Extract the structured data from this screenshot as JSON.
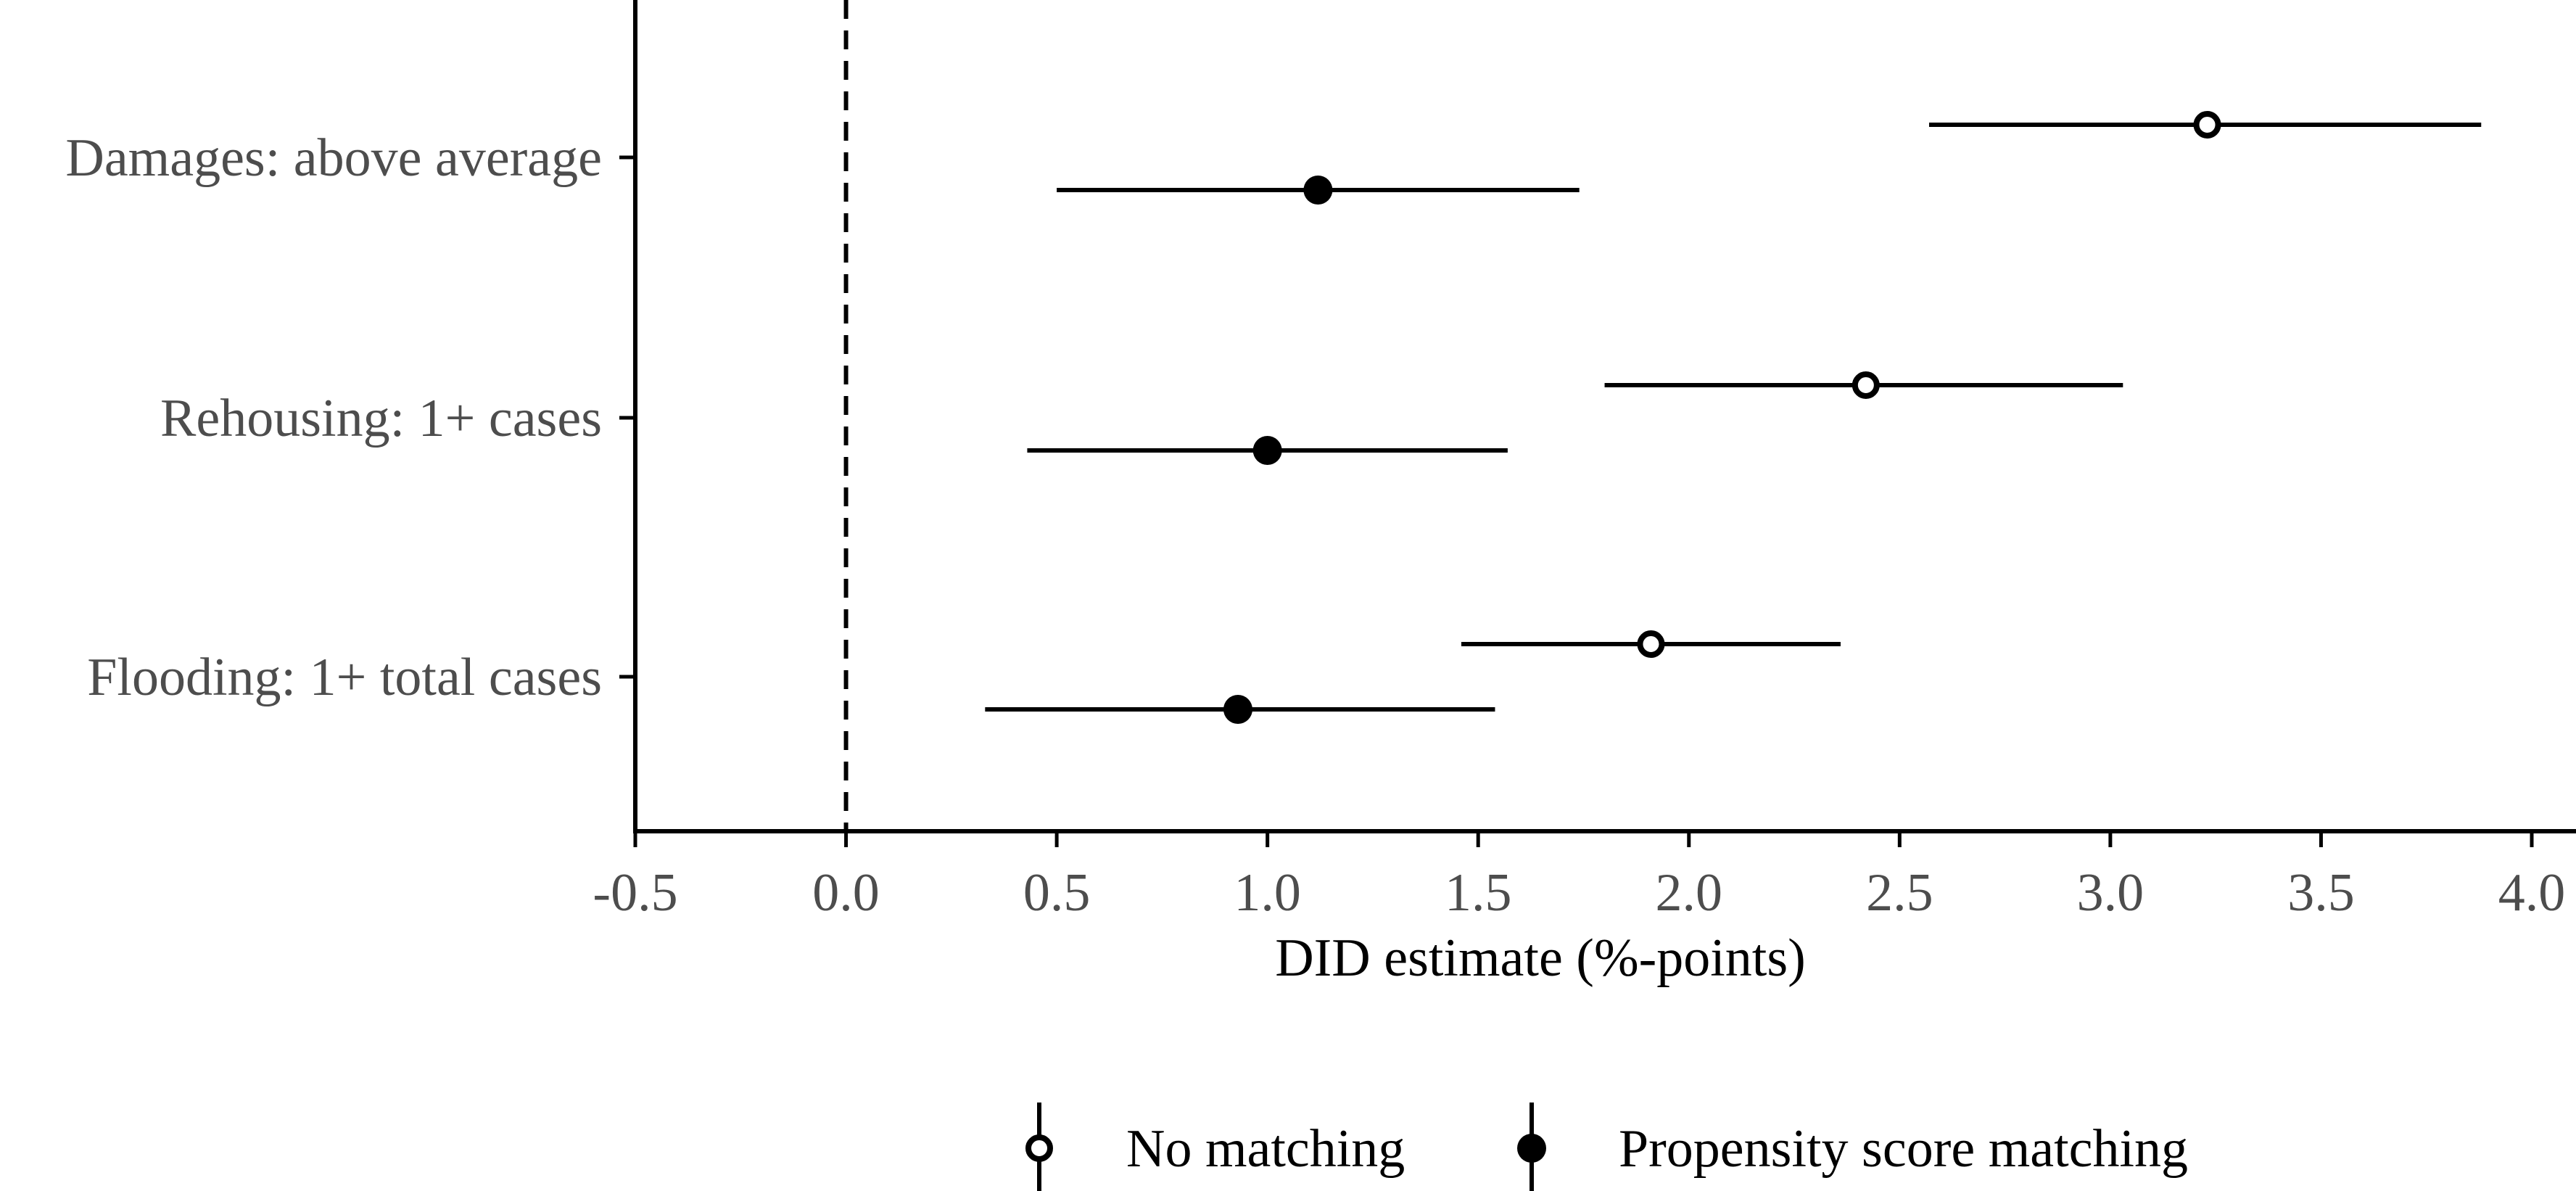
{
  "chart_data": {
    "type": "forest",
    "title": "",
    "xlabel": "DID estimate (%-points)",
    "ylabel": "",
    "xlim": [
      -0.5,
      4.0
    ],
    "xticks": [
      -0.5,
      0.0,
      0.5,
      1.0,
      1.5,
      2.0,
      2.5,
      3.0,
      3.5,
      4.0
    ],
    "xtick_labels": [
      "-0.5",
      "0.0",
      "0.5",
      "1.0",
      "1.5",
      "2.0",
      "2.5",
      "3.0",
      "3.5",
      "4.0"
    ],
    "reference_line": 0.0,
    "grid": false,
    "legend_position": "bottom",
    "categories": [
      "Damages: above average",
      "Rehousing: 1+ cases",
      "Flooding: 1+ total cases"
    ],
    "series": [
      {
        "name": "No matching",
        "marker": "open-circle",
        "estimates": [
          3.23,
          2.42,
          1.91
        ],
        "ci_low": [
          2.57,
          1.8,
          1.46
        ],
        "ci_high": [
          3.88,
          3.03,
          2.36
        ]
      },
      {
        "name": "Propensity score matching",
        "marker": "filled-circle",
        "estimates": [
          1.12,
          1.0,
          0.93
        ],
        "ci_low": [
          0.5,
          0.43,
          0.33
        ],
        "ci_high": [
          1.74,
          1.57,
          1.54
        ]
      }
    ]
  },
  "colors": {
    "ink": "#000000",
    "tick_text": "#4d4d4d",
    "background": "#ffffff"
  }
}
